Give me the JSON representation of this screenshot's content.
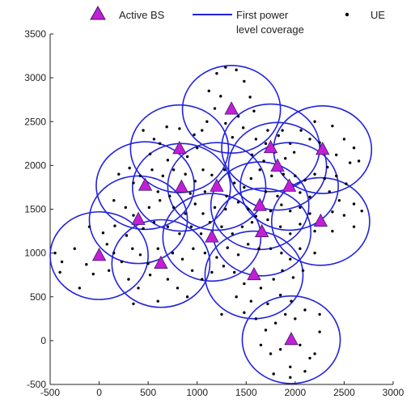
{
  "chart_data": {
    "type": "scatter",
    "title": "",
    "xlabel": "",
    "ylabel": "",
    "xlim": [
      -500,
      3000
    ],
    "ylim": [
      -500,
      3500
    ],
    "x_ticks": [
      -500,
      0,
      500,
      1000,
      1500,
      2000,
      2500,
      3000
    ],
    "y_ticks": [
      -500,
      0,
      500,
      1000,
      1500,
      2000,
      2500,
      3000,
      3500
    ],
    "grid": false,
    "legend": {
      "placement": "top",
      "entries": [
        {
          "label": "Active BS",
          "marker": "triangle"
        },
        {
          "label_lines": [
            "First power",
            "level coverage"
          ],
          "marker": "line"
        },
        {
          "label": "UE",
          "marker": "dot"
        }
      ]
    },
    "colors": {
      "bs_fill": "#c21fd6",
      "bs_edge": "#3a1a66",
      "coverage": "#2222dd",
      "ue": "#000000",
      "axis": "#222222"
    },
    "coverage_radius": 500,
    "base_stations": [
      {
        "x": 1350,
        "y": 2640
      },
      {
        "x": 820,
        "y": 2190
      },
      {
        "x": 1750,
        "y": 2200
      },
      {
        "x": 2280,
        "y": 2180
      },
      {
        "x": 1820,
        "y": 1990
      },
      {
        "x": 470,
        "y": 1770
      },
      {
        "x": 840,
        "y": 1750
      },
      {
        "x": 1200,
        "y": 1760
      },
      {
        "x": 1940,
        "y": 1760
      },
      {
        "x": 1640,
        "y": 1540
      },
      {
        "x": 400,
        "y": 1380
      },
      {
        "x": 2260,
        "y": 1360
      },
      {
        "x": 1660,
        "y": 1240
      },
      {
        "x": 1150,
        "y": 1180
      },
      {
        "x": 0,
        "y": 970
      },
      {
        "x": 630,
        "y": 880
      },
      {
        "x": 1580,
        "y": 750
      },
      {
        "x": 1960,
        "y": 10
      }
    ],
    "ue_points": [
      [
        1200,
        3050
      ],
      [
        1290,
        3120
      ],
      [
        1400,
        3090
      ],
      [
        1480,
        2960
      ],
      [
        1120,
        2850
      ],
      [
        1240,
        2790
      ],
      [
        1540,
        2780
      ],
      [
        1180,
        2650
      ],
      [
        1420,
        2560
      ],
      [
        1290,
        2480
      ],
      [
        1580,
        2620
      ],
      [
        1100,
        2500
      ],
      [
        1360,
        2320
      ],
      [
        1470,
        2430
      ],
      [
        1050,
        2400
      ],
      [
        450,
        2400
      ],
      [
        560,
        2300
      ],
      [
        690,
        2440
      ],
      [
        820,
        2420
      ],
      [
        970,
        2350
      ],
      [
        520,
        2130
      ],
      [
        700,
        2060
      ],
      [
        900,
        2100
      ],
      [
        1000,
        2200
      ],
      [
        620,
        2250
      ],
      [
        1600,
        2300
      ],
      [
        1720,
        2400
      ],
      [
        1830,
        2340
      ],
      [
        1950,
        2250
      ],
      [
        1680,
        2050
      ],
      [
        1560,
        2120
      ],
      [
        1790,
        2150
      ],
      [
        1900,
        2080
      ],
      [
        1990,
        2150
      ],
      [
        1700,
        2250
      ],
      [
        2060,
        2400
      ],
      [
        2150,
        2300
      ],
      [
        2250,
        2260
      ],
      [
        2380,
        2450
      ],
      [
        2500,
        2300
      ],
      [
        2600,
        2200
      ],
      [
        2420,
        2120
      ],
      [
        2330,
        1980
      ],
      [
        2560,
        2030
      ],
      [
        2650,
        2050
      ],
      [
        1870,
        2400
      ],
      [
        2200,
        2500
      ],
      [
        200,
        1900
      ],
      [
        310,
        1970
      ],
      [
        420,
        1880
      ],
      [
        540,
        1950
      ],
      [
        650,
        1880
      ],
      [
        760,
        1950
      ],
      [
        880,
        1900
      ],
      [
        980,
        1820
      ],
      [
        1060,
        1950
      ],
      [
        1150,
        1890
      ],
      [
        1280,
        1950
      ],
      [
        350,
        1800
      ],
      [
        600,
        1700
      ],
      [
        720,
        1650
      ],
      [
        930,
        1680
      ],
      [
        1080,
        1700
      ],
      [
        1300,
        1650
      ],
      [
        1380,
        1800
      ],
      [
        1480,
        1750
      ],
      [
        1550,
        1850
      ],
      [
        1640,
        1950
      ],
      [
        1760,
        1880
      ],
      [
        1880,
        1900
      ],
      [
        2000,
        1880
      ],
      [
        2100,
        1830
      ],
      [
        2200,
        1900
      ],
      [
        2300,
        1850
      ],
      [
        2420,
        1880
      ],
      [
        2520,
        1790
      ],
      [
        1700,
        1700
      ],
      [
        1820,
        1650
      ],
      [
        2050,
        1690
      ],
      [
        2150,
        1640
      ],
      [
        2350,
        1700
      ],
      [
        2450,
        1600
      ],
      [
        2600,
        1560
      ],
      [
        2680,
        1480
      ],
      [
        150,
        1600
      ],
      [
        270,
        1520
      ],
      [
        350,
        1430
      ],
      [
        510,
        1520
      ],
      [
        620,
        1600
      ],
      [
        760,
        1520
      ],
      [
        880,
        1450
      ],
      [
        980,
        1560
      ],
      [
        1060,
        1450
      ],
      [
        1180,
        1520
      ],
      [
        1290,
        1500
      ],
      [
        1420,
        1580
      ],
      [
        1520,
        1500
      ],
      [
        1600,
        1420
      ],
      [
        1750,
        1480
      ],
      [
        1860,
        1550
      ],
      [
        1950,
        1480
      ],
      [
        2050,
        1520
      ],
      [
        2150,
        1450
      ],
      [
        2380,
        1470
      ],
      [
        2500,
        1430
      ],
      [
        -100,
        1300
      ],
      [
        40,
        1230
      ],
      [
        160,
        1310
      ],
      [
        280,
        1200
      ],
      [
        450,
        1280
      ],
      [
        560,
        1350
      ],
      [
        700,
        1300
      ],
      [
        820,
        1220
      ],
      [
        940,
        1300
      ],
      [
        1040,
        1220
      ],
      [
        1130,
        1350
      ],
      [
        1250,
        1300
      ],
      [
        1360,
        1220
      ],
      [
        1460,
        1300
      ],
      [
        1560,
        1350
      ],
      [
        1720,
        1380
      ],
      [
        1850,
        1300
      ],
      [
        1950,
        1220
      ],
      [
        2050,
        1330
      ],
      [
        2200,
        1250
      ],
      [
        2380,
        1250
      ],
      [
        2600,
        1300
      ],
      [
        -450,
        1000
      ],
      [
        -380,
        900
      ],
      [
        -250,
        1050
      ],
      [
        -130,
        870
      ],
      [
        -60,
        760
      ],
      [
        80,
        1100
      ],
      [
        150,
        1000
      ],
      [
        230,
        900
      ],
      [
        340,
        1050
      ],
      [
        420,
        980
      ],
      [
        500,
        880
      ],
      [
        600,
        1050
      ],
      [
        750,
        1000
      ],
      [
        850,
        930
      ],
      [
        960,
        1050
      ],
      [
        1080,
        1000
      ],
      [
        1200,
        950
      ],
      [
        1310,
        1060
      ],
      [
        1420,
        980
      ],
      [
        1520,
        1100
      ],
      [
        1630,
        1050
      ],
      [
        1750,
        1050
      ],
      [
        1860,
        1000
      ],
      [
        1950,
        930
      ],
      [
        2050,
        1050
      ],
      [
        2200,
        1000
      ],
      [
        -400,
        780
      ],
      [
        -200,
        600
      ],
      [
        100,
        800
      ],
      [
        300,
        700
      ],
      [
        400,
        600
      ],
      [
        520,
        750
      ],
      [
        700,
        700
      ],
      [
        800,
        600
      ],
      [
        950,
        800
      ],
      [
        1050,
        700
      ],
      [
        1150,
        780
      ],
      [
        1270,
        850
      ],
      [
        1380,
        780
      ],
      [
        1480,
        650
      ],
      [
        1650,
        600
      ],
      [
        1780,
        700
      ],
      [
        1870,
        800
      ],
      [
        1980,
        720
      ],
      [
        2080,
        800
      ],
      [
        350,
        420
      ],
      [
        600,
        450
      ],
      [
        900,
        500
      ],
      [
        1400,
        500
      ],
      [
        1550,
        450
      ],
      [
        1720,
        420
      ],
      [
        1850,
        520
      ],
      [
        1960,
        450
      ],
      [
        1250,
        300
      ],
      [
        1480,
        320
      ],
      [
        1600,
        250
      ],
      [
        1700,
        120
      ],
      [
        1800,
        200
      ],
      [
        1900,
        300
      ],
      [
        2000,
        250
      ],
      [
        2100,
        350
      ],
      [
        2250,
        300
      ],
      [
        1650,
        -50
      ],
      [
        1750,
        -150
      ],
      [
        1850,
        -100
      ],
      [
        2050,
        -50
      ],
      [
        2150,
        -200
      ],
      [
        2250,
        100
      ],
      [
        1950,
        -300
      ],
      [
        2100,
        -350
      ],
      [
        1950,
        -420
      ],
      [
        1780,
        -380
      ],
      [
        2200,
        -150
      ]
    ]
  }
}
